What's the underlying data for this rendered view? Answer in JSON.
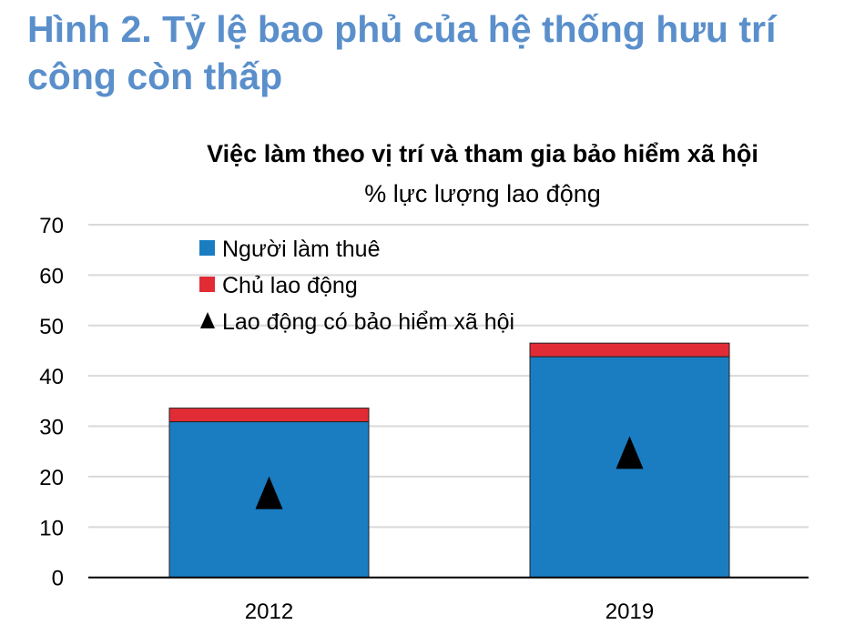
{
  "title": "Hình 2. Tỷ lệ bao phủ của hệ thống hưu trí công còn thấp",
  "chart_data": {
    "type": "bar",
    "stacked": true,
    "title": "Việc làm theo vị trí và tham gia bảo hiểm xã hội",
    "subtitle": "% lực lượng lao động",
    "categories": [
      "2012",
      "2019"
    ],
    "series": [
      {
        "name": "Người làm thuê",
        "type": "bar",
        "color": "#1a7dc2",
        "values": [
          30.9,
          43.8
        ]
      },
      {
        "name": "Chủ lao động",
        "type": "bar",
        "color": "#e12c36",
        "values": [
          2.7,
          2.7
        ]
      },
      {
        "name": "Lao động có bảo hiểm xã hội",
        "type": "marker-triangle",
        "color": "#000000",
        "values": [
          16.8,
          24.8
        ]
      }
    ],
    "ylim": [
      0,
      70
    ],
    "yticks": [
      "0",
      "10",
      "20",
      "30",
      "40",
      "50",
      "60",
      "70"
    ],
    "grid": true,
    "legend": "top-left"
  }
}
